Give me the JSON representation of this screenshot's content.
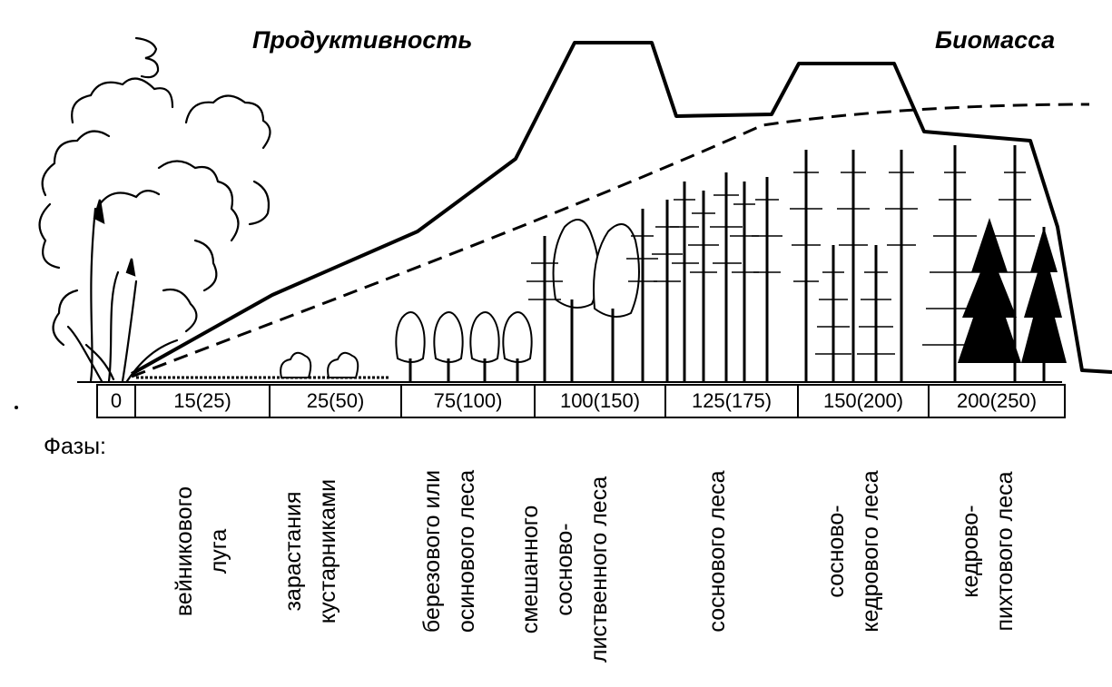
{
  "labels": {
    "productivity": "Продуктивность",
    "biomass": "Биомасса",
    "phases": "Фазы:"
  },
  "scale": [
    "0",
    "15(25)",
    "25(50)",
    "75(100)",
    "100(150)",
    "125(175)",
    "150(200)",
    "200(250)"
  ],
  "phases": [
    [
      "вейникового",
      "луга"
    ],
    [
      "зарастания",
      "кустарниками"
    ],
    [
      "березового или",
      "осинового леса"
    ],
    [
      "смешанного",
      "сосново-",
      "лиственного леса"
    ],
    [
      "соснового леса"
    ],
    [
      "сосново-",
      "кедрового леса"
    ],
    [
      "кедрово-",
      "пихтового леса"
    ]
  ],
  "colors": {
    "ink": "#000000",
    "paper": "#ffffff"
  }
}
